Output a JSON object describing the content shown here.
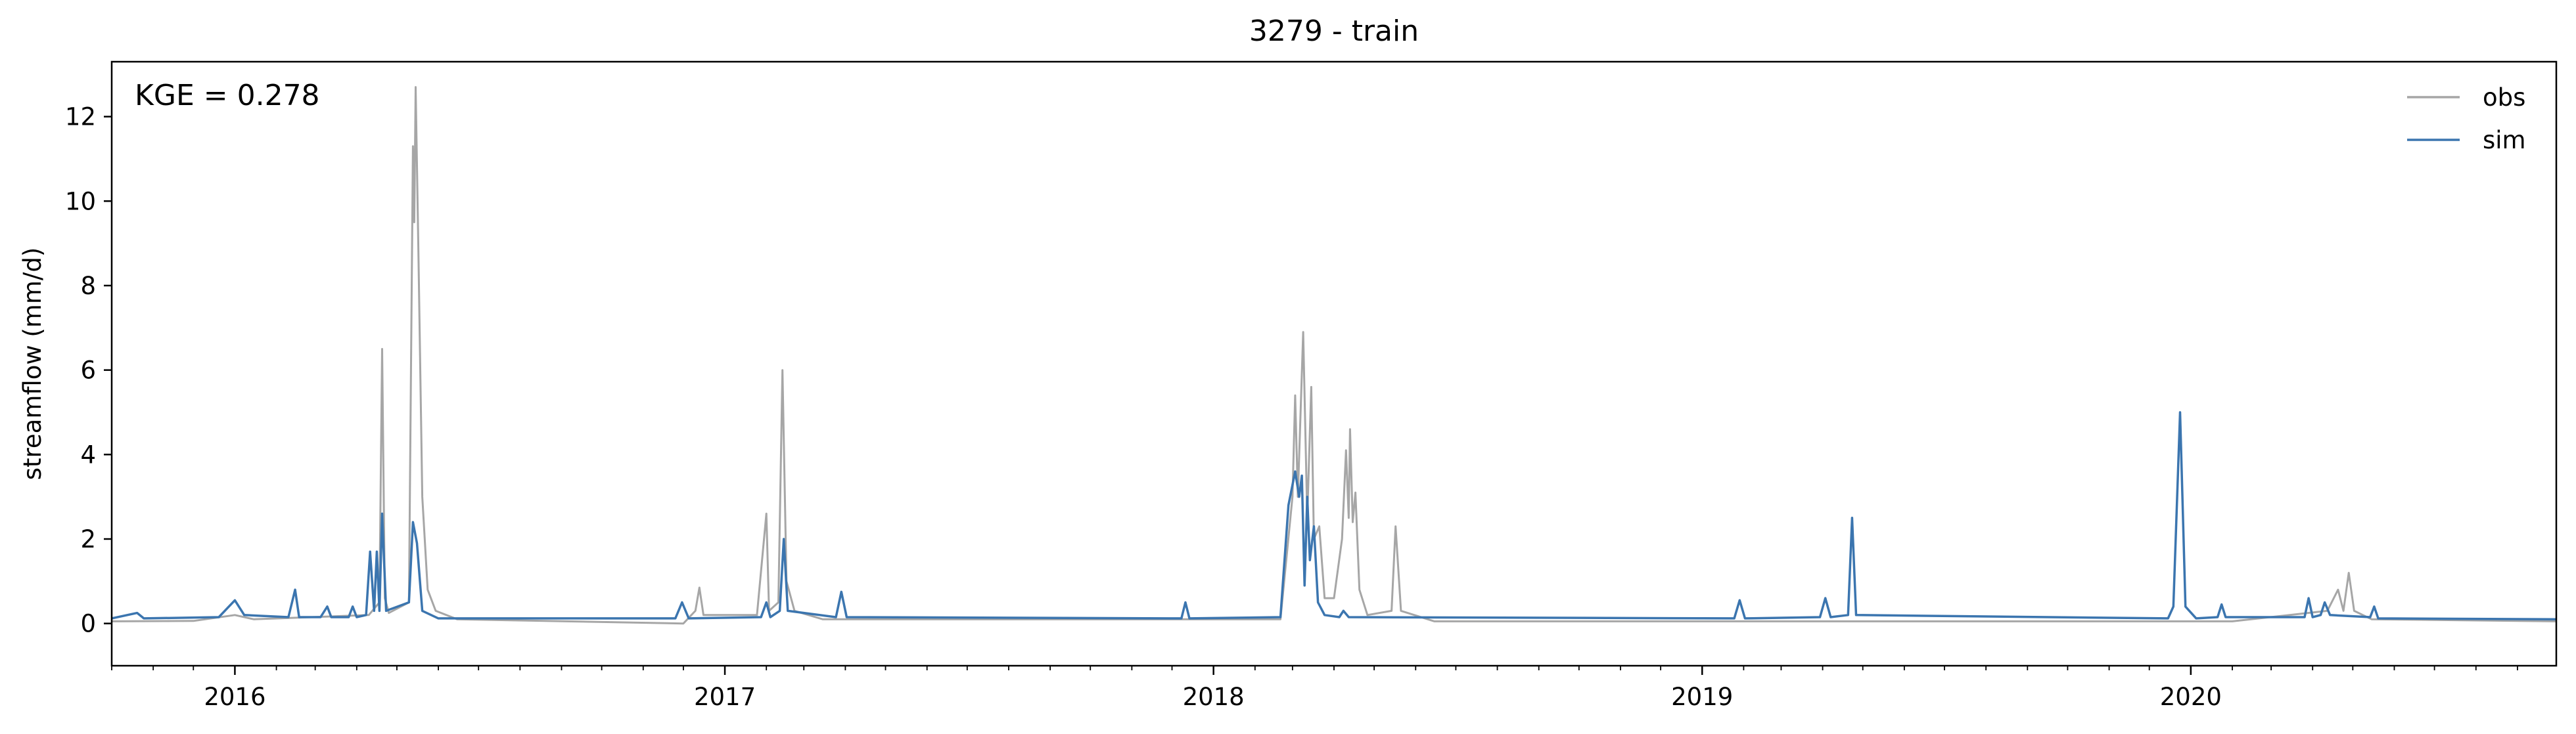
{
  "chart_data": {
    "type": "line",
    "title": "3279 - train",
    "xlabel": "",
    "ylabel": "streamflow (mm/d)",
    "annotation": "KGE = 0.278",
    "xlim": [
      "2015-10-01",
      "2020-09-30"
    ],
    "ylim": [
      -1,
      13.3
    ],
    "xticks": [
      {
        "value": "2016-01-01",
        "label": "2016"
      },
      {
        "value": "2017-01-01",
        "label": "2017"
      },
      {
        "value": "2018-01-01",
        "label": "2018"
      },
      {
        "value": "2019-01-01",
        "label": "2019"
      },
      {
        "value": "2020-01-01",
        "label": "2020"
      }
    ],
    "yticks": [
      0,
      2,
      4,
      6,
      8,
      10,
      12
    ],
    "grid": false,
    "legend": "top-right",
    "series": [
      {
        "name": "obs",
        "color": "#a6a6a6",
        "points": [
          [
            "2015-10-01",
            0.05
          ],
          [
            "2015-12-01",
            0.06
          ],
          [
            "2016-01-01",
            0.2
          ],
          [
            "2016-01-15",
            0.1
          ],
          [
            "2016-04-10",
            0.2
          ],
          [
            "2016-04-18",
            0.5
          ],
          [
            "2016-04-20",
            6.5
          ],
          [
            "2016-04-22",
            0.6
          ],
          [
            "2016-04-25",
            0.25
          ],
          [
            "2016-05-10",
            0.5
          ],
          [
            "2016-05-13",
            11.3
          ],
          [
            "2016-05-14",
            9.5
          ],
          [
            "2016-05-15",
            12.7
          ],
          [
            "2016-05-17",
            9.0
          ],
          [
            "2016-05-20",
            3.0
          ],
          [
            "2016-05-24",
            0.8
          ],
          [
            "2016-05-30",
            0.3
          ],
          [
            "2016-06-15",
            0.1
          ],
          [
            "2016-12-01",
            0.0
          ],
          [
            "2016-12-10",
            0.3
          ],
          [
            "2016-12-13",
            0.85
          ],
          [
            "2016-12-16",
            0.2
          ],
          [
            "2017-01-25",
            0.2
          ],
          [
            "2017-02-01",
            2.6
          ],
          [
            "2017-02-03",
            0.3
          ],
          [
            "2017-02-10",
            0.5
          ],
          [
            "2017-02-13",
            6.0
          ],
          [
            "2017-02-16",
            1.0
          ],
          [
            "2017-02-22",
            0.3
          ],
          [
            "2017-03-15",
            0.1
          ],
          [
            "2018-02-20",
            0.1
          ],
          [
            "2018-03-01",
            3.0
          ],
          [
            "2018-03-03",
            5.4
          ],
          [
            "2018-03-05",
            3.0
          ],
          [
            "2018-03-09",
            6.9
          ],
          [
            "2018-03-12",
            2.5
          ],
          [
            "2018-03-15",
            5.6
          ],
          [
            "2018-03-17",
            2.0
          ],
          [
            "2018-03-21",
            2.3
          ],
          [
            "2018-03-25",
            0.6
          ],
          [
            "2018-04-01",
            0.6
          ],
          [
            "2018-04-07",
            2.0
          ],
          [
            "2018-04-10",
            4.1
          ],
          [
            "2018-04-12",
            2.5
          ],
          [
            "2018-04-13",
            4.6
          ],
          [
            "2018-04-15",
            2.4
          ],
          [
            "2018-04-17",
            3.1
          ],
          [
            "2018-04-20",
            0.8
          ],
          [
            "2018-04-26",
            0.2
          ],
          [
            "2018-05-14",
            0.3
          ],
          [
            "2018-05-17",
            2.3
          ],
          [
            "2018-05-21",
            0.3
          ],
          [
            "2018-06-15",
            0.05
          ],
          [
            "2019-10-15",
            0.05
          ],
          [
            "2020-02-01",
            0.05
          ],
          [
            "2020-04-12",
            0.3
          ],
          [
            "2020-04-20",
            0.8
          ],
          [
            "2020-04-24",
            0.3
          ],
          [
            "2020-04-28",
            1.2
          ],
          [
            "2020-05-02",
            0.3
          ],
          [
            "2020-05-15",
            0.1
          ],
          [
            "2020-09-30",
            0.05
          ]
        ]
      },
      {
        "name": "sim",
        "color": "#3b75af",
        "points": [
          [
            "2015-10-01",
            0.12
          ],
          [
            "2015-10-20",
            0.25
          ],
          [
            "2015-10-25",
            0.12
          ],
          [
            "2015-12-20",
            0.15
          ],
          [
            "2016-01-01",
            0.55
          ],
          [
            "2016-01-08",
            0.2
          ],
          [
            "2016-02-10",
            0.15
          ],
          [
            "2016-02-15",
            0.8
          ],
          [
            "2016-02-18",
            0.15
          ],
          [
            "2016-03-05",
            0.15
          ],
          [
            "2016-03-10",
            0.4
          ],
          [
            "2016-03-13",
            0.15
          ],
          [
            "2016-03-26",
            0.15
          ],
          [
            "2016-03-29",
            0.4
          ],
          [
            "2016-04-01",
            0.15
          ],
          [
            "2016-04-08",
            0.2
          ],
          [
            "2016-04-11",
            1.7
          ],
          [
            "2016-04-14",
            0.3
          ],
          [
            "2016-04-16",
            1.7
          ],
          [
            "2016-04-18",
            0.3
          ],
          [
            "2016-04-20",
            2.6
          ],
          [
            "2016-04-23",
            0.3
          ],
          [
            "2016-05-10",
            0.5
          ],
          [
            "2016-05-13",
            2.4
          ],
          [
            "2016-05-16",
            1.9
          ],
          [
            "2016-05-20",
            0.3
          ],
          [
            "2016-06-01",
            0.12
          ],
          [
            "2016-11-25",
            0.12
          ],
          [
            "2016-11-30",
            0.5
          ],
          [
            "2016-12-05",
            0.12
          ],
          [
            "2017-01-28",
            0.15
          ],
          [
            "2017-02-01",
            0.5
          ],
          [
            "2017-02-04",
            0.15
          ],
          [
            "2017-02-11",
            0.3
          ],
          [
            "2017-02-14",
            2.0
          ],
          [
            "2017-02-17",
            0.3
          ],
          [
            "2017-03-25",
            0.15
          ],
          [
            "2017-03-29",
            0.75
          ],
          [
            "2017-04-02",
            0.15
          ],
          [
            "2017-12-08",
            0.12
          ],
          [
            "2017-12-11",
            0.5
          ],
          [
            "2017-12-14",
            0.12
          ],
          [
            "2018-02-20",
            0.15
          ],
          [
            "2018-02-26",
            2.8
          ],
          [
            "2018-03-03",
            3.6
          ],
          [
            "2018-03-06",
            3.0
          ],
          [
            "2018-03-08",
            3.5
          ],
          [
            "2018-03-10",
            0.9
          ],
          [
            "2018-03-12",
            3.0
          ],
          [
            "2018-03-14",
            1.5
          ],
          [
            "2018-03-17",
            2.3
          ],
          [
            "2018-03-20",
            0.5
          ],
          [
            "2018-03-25",
            0.2
          ],
          [
            "2018-04-05",
            0.15
          ],
          [
            "2018-04-08",
            0.3
          ],
          [
            "2018-04-12",
            0.15
          ],
          [
            "2019-01-25",
            0.12
          ],
          [
            "2019-01-29",
            0.55
          ],
          [
            "2019-02-02",
            0.12
          ],
          [
            "2019-03-30",
            0.15
          ],
          [
            "2019-04-03",
            0.6
          ],
          [
            "2019-04-07",
            0.15
          ],
          [
            "2019-04-20",
            0.2
          ],
          [
            "2019-04-23",
            2.5
          ],
          [
            "2019-04-26",
            0.2
          ],
          [
            "2019-12-15",
            0.12
          ],
          [
            "2019-12-19",
            0.4
          ],
          [
            "2019-12-24",
            5.0
          ],
          [
            "2019-12-28",
            0.4
          ],
          [
            "2020-01-05",
            0.12
          ],
          [
            "2020-01-21",
            0.15
          ],
          [
            "2020-01-24",
            0.45
          ],
          [
            "2020-01-27",
            0.15
          ],
          [
            "2020-03-26",
            0.15
          ],
          [
            "2020-03-29",
            0.6
          ],
          [
            "2020-04-01",
            0.15
          ],
          [
            "2020-04-07",
            0.2
          ],
          [
            "2020-04-10",
            0.5
          ],
          [
            "2020-04-14",
            0.2
          ],
          [
            "2020-05-14",
            0.15
          ],
          [
            "2020-05-17",
            0.4
          ],
          [
            "2020-05-20",
            0.12
          ],
          [
            "2020-09-30",
            0.1
          ]
        ]
      }
    ]
  }
}
